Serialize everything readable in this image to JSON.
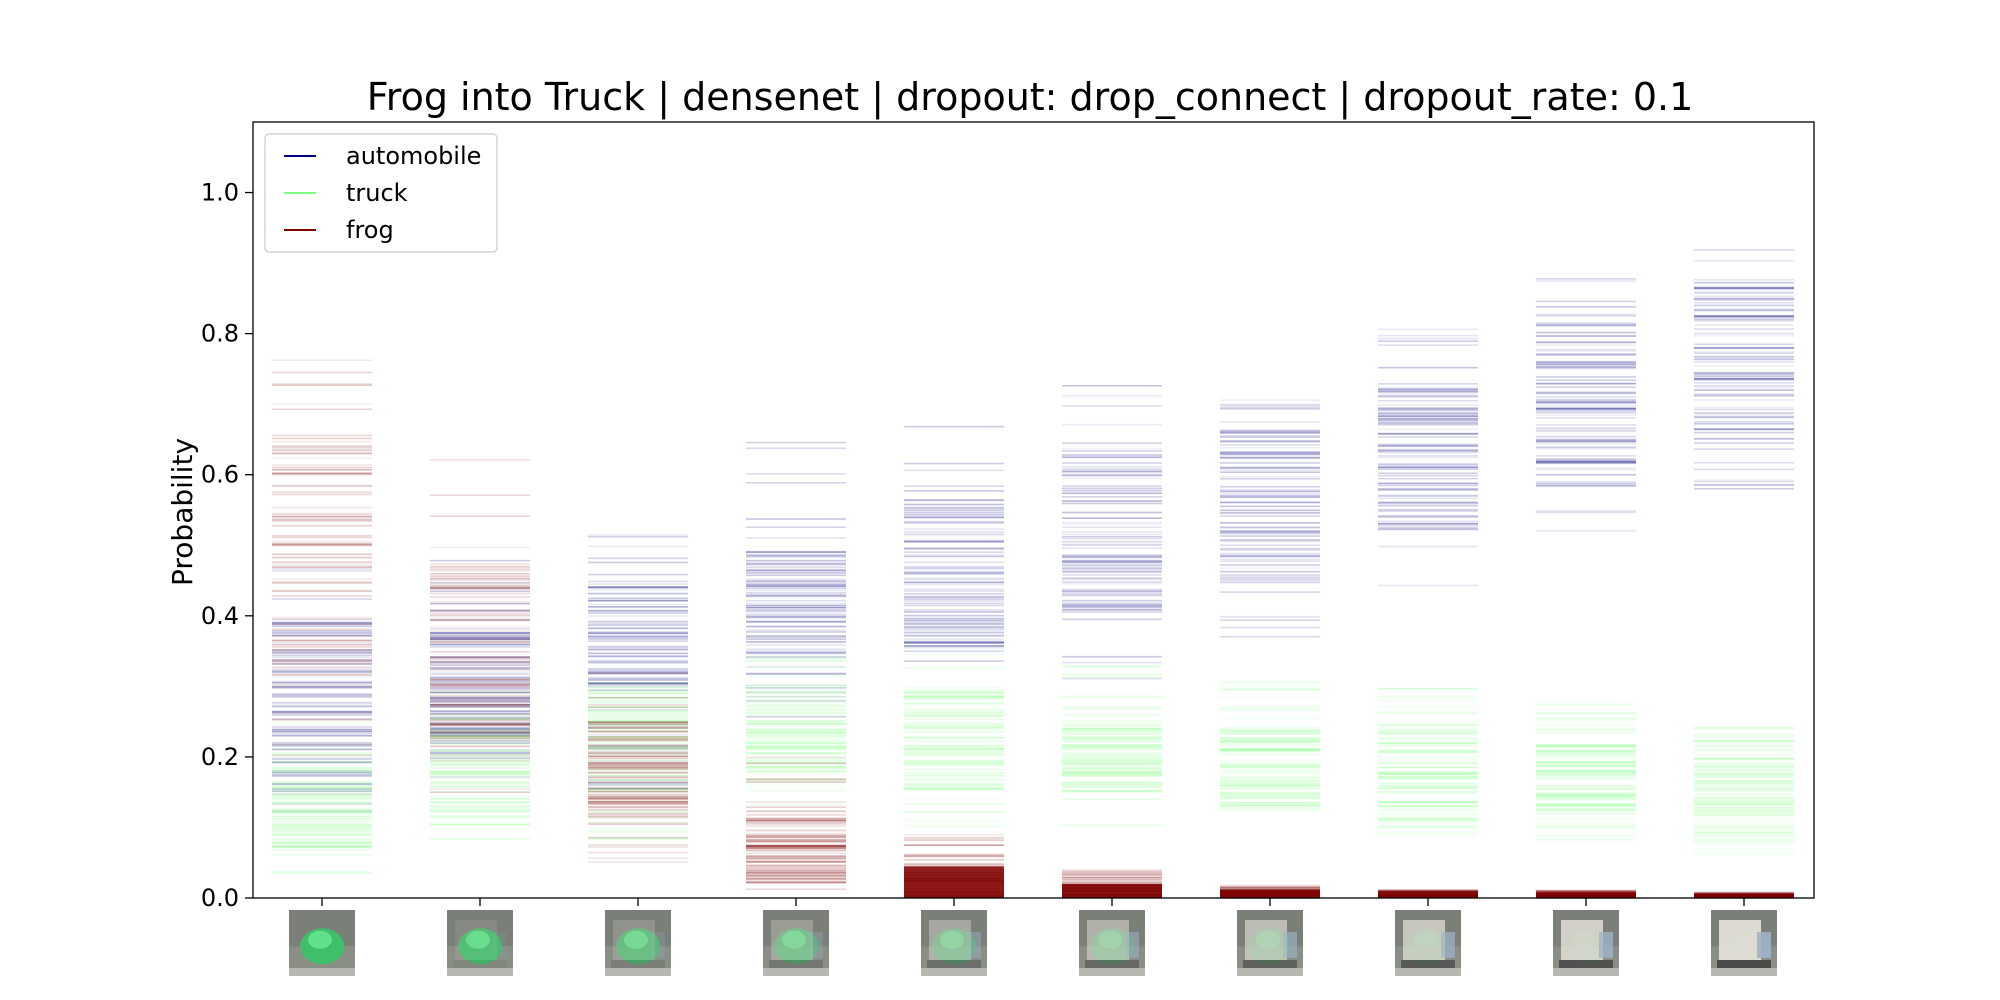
{
  "chart_data": {
    "type": "scatter",
    "title": "Frog into Truck | densenet | dropout: drop_connect | dropout_rate: 0.1",
    "xlabel": "",
    "ylabel": "Probability",
    "ylim": [
      0,
      1.1
    ],
    "yticks": [
      0.0,
      0.2,
      0.4,
      0.6,
      0.8,
      1.0
    ],
    "ytick_labels": [
      "0.0",
      "0.2",
      "0.4",
      "0.6",
      "0.8",
      "1.0"
    ],
    "grid": false,
    "legend_position": "top-left",
    "x_positions": [
      1,
      2,
      3,
      4,
      5,
      6,
      7,
      8,
      9,
      10
    ],
    "x_tick_images": [
      "frog",
      "frog",
      "frog",
      "frog-truck",
      "frog-truck",
      "frog-truck",
      "truck-frog",
      "truck",
      "truck",
      "truck"
    ],
    "series": [
      {
        "name": "automobile",
        "color": "#00007f",
        "ranges": [
          [
            0.1,
            0.55
          ],
          [
            0.15,
            0.5
          ],
          [
            0.15,
            0.53
          ],
          [
            0.25,
            0.65
          ],
          [
            0.3,
            0.68
          ],
          [
            0.3,
            0.74
          ],
          [
            0.3,
            0.72
          ],
          [
            0.42,
            0.81
          ],
          [
            0.52,
            0.88
          ],
          [
            0.57,
            0.92
          ]
        ],
        "dense_ranges": [
          [
            0.15,
            0.4
          ],
          [
            0.2,
            0.38
          ],
          [
            0.3,
            0.45
          ],
          [
            0.3,
            0.5
          ],
          [
            0.35,
            0.58
          ],
          [
            0.4,
            0.65
          ],
          [
            0.45,
            0.68
          ],
          [
            0.52,
            0.73
          ],
          [
            0.58,
            0.8
          ],
          [
            0.65,
            0.88
          ]
        ]
      },
      {
        "name": "truck",
        "color": "#7fff7f",
        "ranges": [
          [
            0.03,
            0.25
          ],
          [
            0.08,
            0.3
          ],
          [
            0.08,
            0.33
          ],
          [
            0.12,
            0.35
          ],
          [
            0.1,
            0.36
          ],
          [
            0.1,
            0.34
          ],
          [
            0.12,
            0.31
          ],
          [
            0.08,
            0.3
          ],
          [
            0.08,
            0.28
          ],
          [
            0.06,
            0.25
          ]
        ],
        "dense_ranges": [
          [
            0.06,
            0.2
          ],
          [
            0.1,
            0.26
          ],
          [
            0.15,
            0.3
          ],
          [
            0.15,
            0.3
          ],
          [
            0.15,
            0.3
          ],
          [
            0.15,
            0.25
          ],
          [
            0.13,
            0.24
          ],
          [
            0.1,
            0.24
          ],
          [
            0.12,
            0.22
          ],
          [
            0.08,
            0.2
          ]
        ]
      },
      {
        "name": "frog",
        "color": "#7f0000",
        "ranges": [
          [
            0.2,
            0.78
          ],
          [
            0.13,
            0.65
          ],
          [
            0.05,
            0.32
          ],
          [
            0.01,
            0.2
          ],
          [
            0.0,
            0.09
          ],
          [
            0.0,
            0.04
          ],
          [
            0.0,
            0.02
          ],
          [
            0.0,
            0.012
          ],
          [
            0.0,
            0.012
          ],
          [
            0.0,
            0.008
          ]
        ],
        "dense_ranges": [
          [
            0.3,
            0.65
          ],
          [
            0.2,
            0.48
          ],
          [
            0.1,
            0.25
          ],
          [
            0.02,
            0.12
          ],
          [
            0.0,
            0.04
          ],
          [
            0.0,
            0.02
          ],
          [
            0.0,
            0.012
          ],
          [
            0.0,
            0.01
          ],
          [
            0.0,
            0.008
          ],
          [
            0.0,
            0.006
          ]
        ]
      }
    ]
  }
}
